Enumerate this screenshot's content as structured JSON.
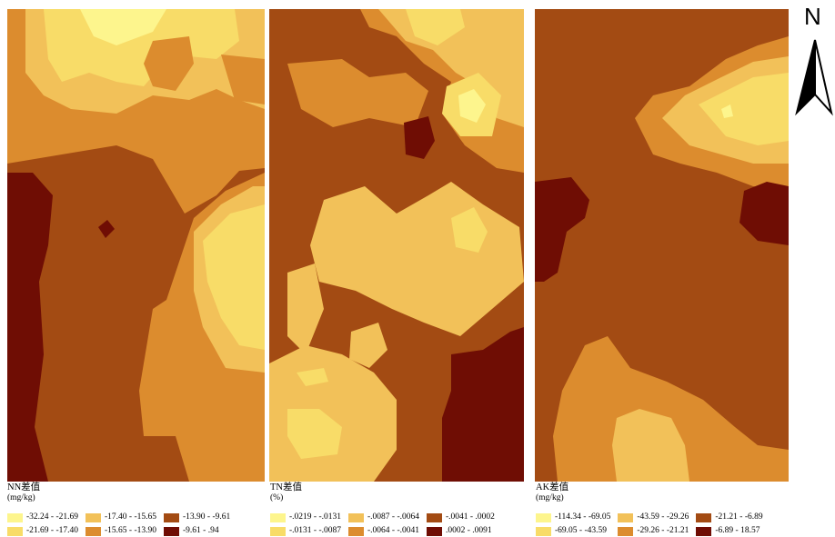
{
  "colors": {
    "c1": "#fdf58d",
    "c2": "#f8dc68",
    "c3": "#f2c159",
    "c4": "#dc8c2e",
    "c5": "#a34b13",
    "c6": "#6f0d04"
  },
  "panels": [
    {
      "title": "NN差值",
      "unit": "(mg/kg)",
      "legend": [
        {
          "label": "-32.24 - -21.69",
          "color": "#fdf58d"
        },
        {
          "label": "-17.40 - -15.65",
          "color": "#f2c159"
        },
        {
          "label": "-13.90 - -9.61",
          "color": "#a34b13"
        },
        {
          "label": "-21.69 - -17.40",
          "color": "#f8dc68"
        },
        {
          "label": "-15.65 - -13.90",
          "color": "#dc8c2e"
        },
        {
          "label": "-9.61 - .94",
          "color": "#6f0d04"
        }
      ]
    },
    {
      "title": "TN差值",
      "unit": "(%)",
      "legend": [
        {
          "label": "-.0219 - -.0131",
          "color": "#fdf58d"
        },
        {
          "label": "-.0087 - -.0064",
          "color": "#f2c159"
        },
        {
          "label": "-.0041 - .0002",
          "color": "#a34b13"
        },
        {
          "label": "-.0131 - -.0087",
          "color": "#f8dc68"
        },
        {
          "label": "-.0064 - -.0041",
          "color": "#dc8c2e"
        },
        {
          "label": ".0002 - .0091",
          "color": "#6f0d04"
        }
      ]
    },
    {
      "title": "AK差值",
      "unit": "(mg/kg)",
      "legend": [
        {
          "label": "-114.34 - -69.05",
          "color": "#fdf58d"
        },
        {
          "label": "-43.59 - -29.26",
          "color": "#f2c159"
        },
        {
          "label": "-21.21 - -6.89",
          "color": "#a34b13"
        },
        {
          "label": "-69.05 - -43.59",
          "color": "#f8dc68"
        },
        {
          "label": "-29.26 - -21.21",
          "color": "#dc8c2e"
        },
        {
          "label": "-6.89 - 18.57",
          "color": "#6f0d04"
        }
      ]
    }
  ],
  "north_arrow": {
    "label": "N",
    "icon": "north-arrow-icon"
  }
}
